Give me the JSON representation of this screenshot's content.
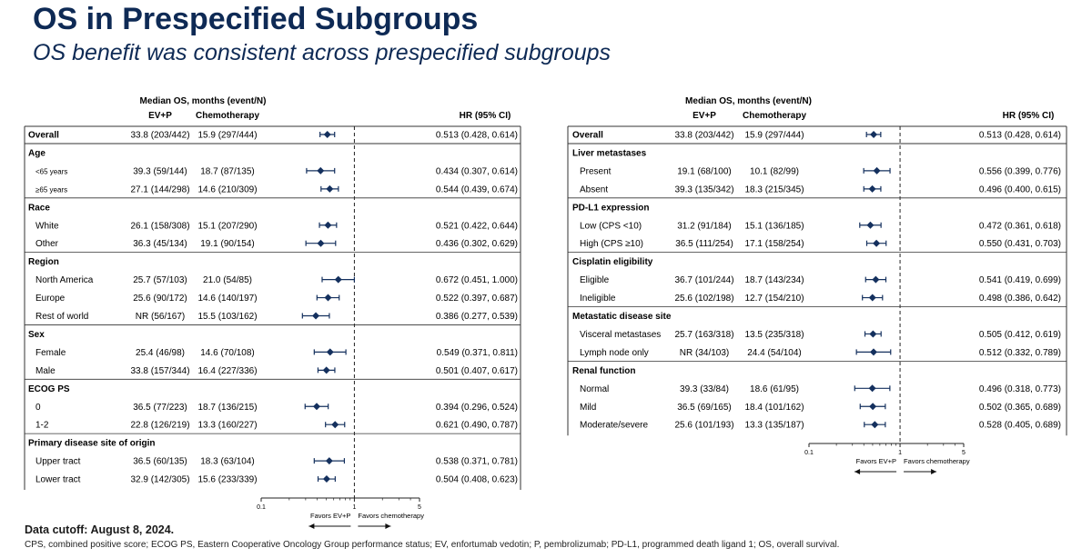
{
  "title": "OS in Prespecified Subgroups",
  "subtitle": "OS benefit was consistent across prespecified subgroups",
  "cutoff": "Data cutoff: August 8, 2024.",
  "footnote": "CPS, combined positive score; ECOG PS, Eastern Cooperative Oncology Group performance status; EV, enfortumab vedotin; P, pembrolizumab; PD-L1, programmed death ligand 1; OS, overall survival.",
  "colors": {
    "title": "#0e2a55",
    "marker": "#14305e"
  },
  "chart_data": [
    {
      "type": "forest",
      "header_main": "Median OS, months (event/N)",
      "header_ev": "EV+P",
      "header_chemo": "Chemotherapy",
      "header_hr": "HR (95% CI)",
      "x_scale": "log",
      "xlim": [
        0.1,
        5
      ],
      "xticks": [
        "0.1",
        "1",
        "5"
      ],
      "reference_line": 1,
      "favors_left": "Favors EV+P",
      "favors_right": "Favors chemotherapy",
      "rows": [
        {
          "kind": "overall",
          "label": "Overall",
          "ev": "33.8 (203/442)",
          "chemo": "15.9 (297/444)",
          "hr_text": "0.513 (0.428, 0.614)",
          "hr": 0.513,
          "lo": 0.428,
          "hi": 0.614
        },
        {
          "kind": "header",
          "label": "Age"
        },
        {
          "kind": "sub",
          "label": "<65 years",
          "ev": "39.3 (59/144)",
          "chemo": "18.7 (87/135)",
          "hr_text": "0.434 (0.307, 0.614)",
          "hr": 0.434,
          "lo": 0.307,
          "hi": 0.614
        },
        {
          "kind": "sub",
          "label": "≥65 years",
          "ev": "27.1 (144/298)",
          "chemo": "14.6 (210/309)",
          "hr_text": "0.544 (0.439, 0.674)",
          "hr": 0.544,
          "lo": 0.439,
          "hi": 0.674
        },
        {
          "kind": "header",
          "label": "Race"
        },
        {
          "kind": "sub",
          "label": "White",
          "ev": "26.1 (158/308)",
          "chemo": "15.1 (207/290)",
          "hr_text": "0.521 (0.422, 0.644)",
          "hr": 0.521,
          "lo": 0.422,
          "hi": 0.644
        },
        {
          "kind": "sub",
          "label": "Other",
          "ev": "36.3 (45/134)",
          "chemo": "19.1 (90/154)",
          "hr_text": "0.436 (0.302, 0.629)",
          "hr": 0.436,
          "lo": 0.302,
          "hi": 0.629
        },
        {
          "kind": "header",
          "label": "Region"
        },
        {
          "kind": "sub",
          "label": "North America",
          "ev": "25.7 (57/103)",
          "chemo": "21.0 (54/85)",
          "hr_text": "0.672 (0.451, 1.000)",
          "hr": 0.672,
          "lo": 0.451,
          "hi": 1.0
        },
        {
          "kind": "sub",
          "label": "Europe",
          "ev": "25.6 (90/172)",
          "chemo": "14.6 (140/197)",
          "hr_text": "0.522 (0.397, 0.687)",
          "hr": 0.522,
          "lo": 0.397,
          "hi": 0.687
        },
        {
          "kind": "sub",
          "label": "Rest of world",
          "ev": "NR (56/167)",
          "chemo": "15.5 (103/162)",
          "hr_text": "0.386 (0.277, 0.539)",
          "hr": 0.386,
          "lo": 0.277,
          "hi": 0.539
        },
        {
          "kind": "header",
          "label": "Sex"
        },
        {
          "kind": "sub",
          "label": "Female",
          "ev": "25.4 (46/98)",
          "chemo": "14.6 (70/108)",
          "hr_text": "0.549 (0.371, 0.811)",
          "hr": 0.549,
          "lo": 0.371,
          "hi": 0.811
        },
        {
          "kind": "sub",
          "label": "Male",
          "ev": "33.8 (157/344)",
          "chemo": "16.4 (227/336)",
          "hr_text": "0.501 (0.407, 0.617)",
          "hr": 0.501,
          "lo": 0.407,
          "hi": 0.617
        },
        {
          "kind": "header",
          "label": "ECOG PS"
        },
        {
          "kind": "sub",
          "label": "0",
          "ev": "36.5 (77/223)",
          "chemo": "18.7 (136/215)",
          "hr_text": "0.394 (0.296, 0.524)",
          "hr": 0.394,
          "lo": 0.296,
          "hi": 0.524
        },
        {
          "kind": "sub",
          "label": "1-2",
          "ev": "22.8 (126/219)",
          "chemo": "13.3 (160/227)",
          "hr_text": "0.621 (0.490, 0.787)",
          "hr": 0.621,
          "lo": 0.49,
          "hi": 0.787
        },
        {
          "kind": "header",
          "label": "Primary disease site of origin"
        },
        {
          "kind": "sub",
          "label": "Upper tract",
          "ev": "36.5 (60/135)",
          "chemo": "18.3 (63/104)",
          "hr_text": "0.538 (0.371, 0.781)",
          "hr": 0.538,
          "lo": 0.371,
          "hi": 0.781
        },
        {
          "kind": "sub",
          "label": "Lower tract",
          "ev": "32.9 (142/305)",
          "chemo": "15.6 (233/339)",
          "hr_text": "0.504 (0.408, 0.623)",
          "hr": 0.504,
          "lo": 0.408,
          "hi": 0.623
        }
      ]
    },
    {
      "type": "forest",
      "header_main": "Median OS, months (event/N)",
      "header_ev": "EV+P",
      "header_chemo": "Chemotherapy",
      "header_hr": "HR (95% CI)",
      "x_scale": "log",
      "xlim": [
        0.1,
        5
      ],
      "xticks": [
        "0.1",
        "1",
        "5"
      ],
      "reference_line": 1,
      "favors_left": "Favors EV+P",
      "favors_right": "Favors chemotherapy",
      "rows": [
        {
          "kind": "overall",
          "label": "Overall",
          "ev": "33.8 (203/442)",
          "chemo": "15.9 (297/444)",
          "hr_text": "0.513 (0.428, 0.614)",
          "hr": 0.513,
          "lo": 0.428,
          "hi": 0.614
        },
        {
          "kind": "header",
          "label": "Liver metastases"
        },
        {
          "kind": "sub",
          "label": "Present",
          "ev": "19.1 (68/100)",
          "chemo": "10.1 (82/99)",
          "hr_text": "0.556 (0.399, 0.776)",
          "hr": 0.556,
          "lo": 0.399,
          "hi": 0.776
        },
        {
          "kind": "sub",
          "label": "Absent",
          "ev": "39.3 (135/342)",
          "chemo": "18.3 (215/345)",
          "hr_text": "0.496 (0.400, 0.615)",
          "hr": 0.496,
          "lo": 0.4,
          "hi": 0.615
        },
        {
          "kind": "header",
          "label": "PD-L1 expression"
        },
        {
          "kind": "sub",
          "label": "Low (CPS <10)",
          "ev": "31.2 (91/184)",
          "chemo": "15.1 (136/185)",
          "hr_text": "0.472 (0.361, 0.618)",
          "hr": 0.472,
          "lo": 0.361,
          "hi": 0.618
        },
        {
          "kind": "sub",
          "label": "High (CPS ≥10)",
          "ev": "36.5 (111/254)",
          "chemo": "17.1 (158/254)",
          "hr_text": "0.550 (0.431, 0.703)",
          "hr": 0.55,
          "lo": 0.431,
          "hi": 0.703
        },
        {
          "kind": "header",
          "label": "Cisplatin eligibility"
        },
        {
          "kind": "sub",
          "label": "Eligible",
          "ev": "36.7 (101/244)",
          "chemo": "18.7 (143/234)",
          "hr_text": "0.541 (0.419, 0.699)",
          "hr": 0.541,
          "lo": 0.419,
          "hi": 0.699
        },
        {
          "kind": "sub",
          "label": "Ineligible",
          "ev": "25.6 (102/198)",
          "chemo": "12.7 (154/210)",
          "hr_text": "0.498 (0.386, 0.642)",
          "hr": 0.498,
          "lo": 0.386,
          "hi": 0.642
        },
        {
          "kind": "header",
          "label": "Metastatic disease site"
        },
        {
          "kind": "sub",
          "label": "Visceral metastases",
          "ev": "25.7 (163/318)",
          "chemo": "13.5 (235/318)",
          "hr_text": "0.505 (0.412, 0.619)",
          "hr": 0.505,
          "lo": 0.412,
          "hi": 0.619
        },
        {
          "kind": "sub",
          "label": "Lymph node only",
          "ev": "NR (34/103)",
          "chemo": "24.4 (54/104)",
          "hr_text": "0.512 (0.332, 0.789)",
          "hr": 0.512,
          "lo": 0.332,
          "hi": 0.789
        },
        {
          "kind": "header",
          "label": "Renal function"
        },
        {
          "kind": "sub",
          "label": "Normal",
          "ev": "39.3 (33/84)",
          "chemo": "18.6 (61/95)",
          "hr_text": "0.496 (0.318, 0.773)",
          "hr": 0.496,
          "lo": 0.318,
          "hi": 0.773
        },
        {
          "kind": "sub",
          "label": "Mild",
          "ev": "36.5 (69/165)",
          "chemo": "18.4 (101/162)",
          "hr_text": "0.502 (0.365, 0.689)",
          "hr": 0.502,
          "lo": 0.365,
          "hi": 0.689
        },
        {
          "kind": "sub",
          "label": "Moderate/severe",
          "ev": "25.6 (101/193)",
          "chemo": "13.3 (135/187)",
          "hr_text": "0.528 (0.405, 0.689)",
          "hr": 0.528,
          "lo": 0.405,
          "hi": 0.689
        }
      ]
    }
  ]
}
